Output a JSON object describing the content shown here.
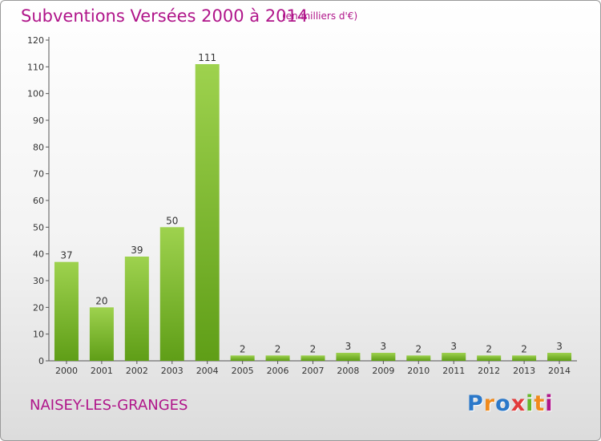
{
  "header": {
    "title": "Subventions Versées 2000 à 2014",
    "unit": "(en milliers d'€)"
  },
  "footer": {
    "commune": "NAISEY-LES-GRANGES",
    "logo": [
      "P",
      "r",
      "o",
      "x",
      "i",
      "t",
      "i"
    ]
  },
  "colors": {
    "title": "#b0158a",
    "bar_top": "#9ed24e",
    "bar_bottom": "#5f9e17"
  },
  "chart_data": {
    "type": "bar",
    "title": "Subventions Versées 2000 à 2014",
    "subtitle": "(en milliers d'€)",
    "categories": [
      "2000",
      "2001",
      "2002",
      "2003",
      "2004",
      "2005",
      "2006",
      "2007",
      "2008",
      "2009",
      "2010",
      "2011",
      "2012",
      "2013",
      "2014"
    ],
    "values": [
      37,
      20,
      39,
      50,
      111,
      2,
      2,
      2,
      3,
      3,
      2,
      3,
      2,
      2,
      3
    ],
    "yticks": [
      0,
      10,
      20,
      30,
      40,
      50,
      60,
      70,
      80,
      90,
      100,
      110,
      120
    ],
    "ylim": [
      0,
      120
    ],
    "grid": false,
    "data_labels": true
  }
}
